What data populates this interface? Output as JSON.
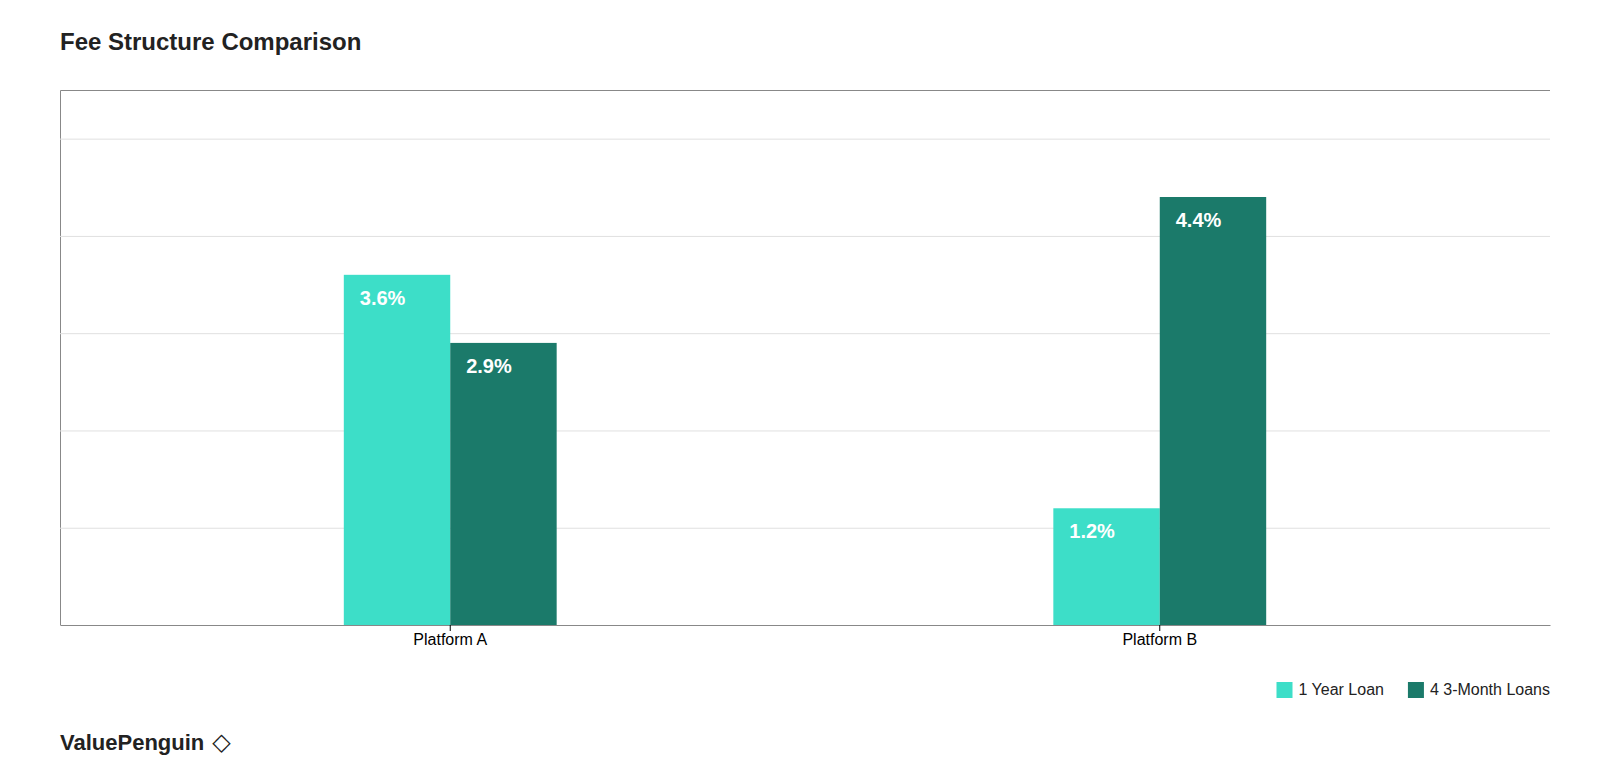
{
  "chart_data": {
    "type": "bar",
    "title": "Fee Structure Comparison",
    "categories": [
      "Platform A",
      "Platform B"
    ],
    "series": [
      {
        "name": "1 Year Loan",
        "color": "#3DDEC8",
        "values": [
          3.6,
          1.2
        ],
        "value_labels": [
          "3.6%",
          "1.2%"
        ]
      },
      {
        "name": "4 3-Month Loans",
        "color": "#1B7A6A",
        "values": [
          2.9,
          4.4
        ],
        "value_labels": [
          "2.9%",
          "4.4%"
        ]
      }
    ],
    "ylim": [
      0,
      5.5
    ],
    "yticks": [
      0,
      1,
      2,
      3,
      4,
      5
    ],
    "grid": true,
    "data_labels": true,
    "tick_labels": "x",
    "legend": "lower right",
    "annotations": [
      "ValuePenguin",
      "◇"
    ]
  }
}
